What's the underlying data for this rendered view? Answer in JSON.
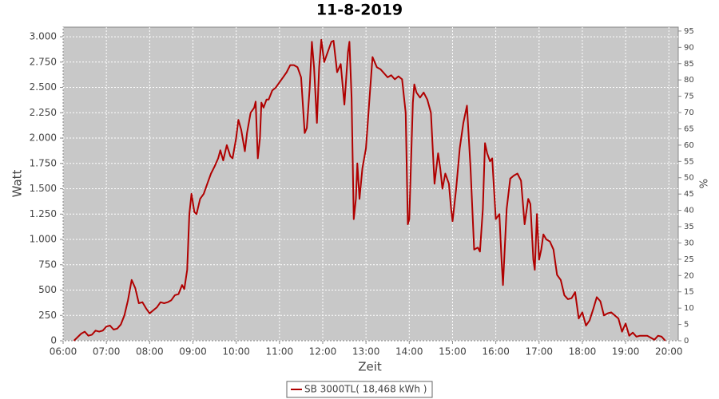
{
  "chart_data": {
    "type": "line",
    "title": "11-8-2019",
    "x_label": "Zeit",
    "y_label": "Watt",
    "y2_label": "%",
    "x": [
      "06:15",
      "06:25",
      "06:30",
      "06:35",
      "06:40",
      "06:45",
      "06:50",
      "06:55",
      "07:00",
      "07:05",
      "07:10",
      "07:15",
      "07:20",
      "07:25",
      "07:30",
      "07:35",
      "07:40",
      "07:45",
      "07:50",
      "07:55",
      "08:00",
      "08:05",
      "08:10",
      "08:15",
      "08:20",
      "08:25",
      "08:30",
      "08:35",
      "08:40",
      "08:45",
      "08:48",
      "08:52",
      "08:55",
      "08:58",
      "09:02",
      "09:05",
      "09:10",
      "09:15",
      "09:20",
      "09:25",
      "09:30",
      "09:35",
      "09:38",
      "09:42",
      "09:47",
      "09:52",
      "09:55",
      "10:00",
      "10:03",
      "10:07",
      "10:12",
      "10:15",
      "10:20",
      "10:25",
      "10:27",
      "10:30",
      "10:33",
      "10:35",
      "10:38",
      "10:42",
      "10:45",
      "10:50",
      "10:55",
      "11:00",
      "11:05",
      "11:10",
      "11:15",
      "11:20",
      "11:25",
      "11:30",
      "11:35",
      "11:38",
      "11:42",
      "11:45",
      "11:48",
      "11:52",
      "11:55",
      "11:58",
      "12:02",
      "12:07",
      "12:12",
      "12:15",
      "12:20",
      "12:25",
      "12:30",
      "12:35",
      "12:37",
      "12:40",
      "12:43",
      "12:46",
      "12:48",
      "12:51",
      "12:55",
      "13:00",
      "13:05",
      "13:09",
      "13:15",
      "13:20",
      "13:30",
      "13:35",
      "13:40",
      "13:45",
      "13:50",
      "13:55",
      "13:58",
      "14:00",
      "14:05",
      "14:07",
      "14:10",
      "14:15",
      "14:20",
      "14:25",
      "14:30",
      "14:35",
      "14:40",
      "14:43",
      "14:46",
      "14:50",
      "14:55",
      "14:58",
      "15:00",
      "15:05",
      "15:10",
      "15:15",
      "15:20",
      "15:25",
      "15:30",
      "15:35",
      "15:38",
      "15:42",
      "15:45",
      "15:48",
      "15:52",
      "15:55",
      "16:00",
      "16:05",
      "16:08",
      "16:10",
      "16:15",
      "16:20",
      "16:25",
      "16:30",
      "16:35",
      "16:40",
      "16:45",
      "16:48",
      "16:52",
      "16:54",
      "16:57",
      "17:00",
      "17:03",
      "17:06",
      "17:10",
      "17:15",
      "17:20",
      "17:25",
      "17:30",
      "17:35",
      "17:40",
      "17:45",
      "17:50",
      "17:55",
      "18:00",
      "18:05",
      "18:10",
      "18:15",
      "18:20",
      "18:25",
      "18:30",
      "18:35",
      "18:40",
      "18:45",
      "18:50",
      "18:55",
      "19:00",
      "19:05",
      "19:10",
      "19:15",
      "19:20",
      "19:30",
      "19:35",
      "19:40",
      "19:45",
      "19:50",
      "19:55"
    ],
    "series": [
      {
        "name": "SB 3000TL( 18,468 kWh )",
        "color": "#b00000",
        "values": [
          0,
          70,
          90,
          50,
          60,
          100,
          90,
          100,
          140,
          150,
          110,
          120,
          160,
          250,
          400,
          600,
          520,
          370,
          380,
          320,
          270,
          300,
          330,
          380,
          370,
          380,
          400,
          450,
          460,
          550,
          510,
          700,
          1250,
          1450,
          1270,
          1250,
          1400,
          1450,
          1550,
          1650,
          1720,
          1800,
          1880,
          1780,
          1930,
          1820,
          1800,
          2000,
          2180,
          2080,
          1870,
          2050,
          2250,
          2300,
          2360,
          1800,
          2000,
          2350,
          2300,
          2380,
          2380,
          2470,
          2500,
          2550,
          2600,
          2650,
          2720,
          2720,
          2700,
          2600,
          2050,
          2100,
          2500,
          2950,
          2700,
          2150,
          2700,
          2970,
          2750,
          2850,
          2950,
          2960,
          2650,
          2730,
          2330,
          2850,
          2950,
          2400,
          1200,
          1400,
          1750,
          1400,
          1700,
          1900,
          2400,
          2800,
          2700,
          2680,
          2600,
          2620,
          2580,
          2610,
          2580,
          2250,
          1150,
          1200,
          2350,
          2530,
          2450,
          2400,
          2450,
          2380,
          2250,
          1550,
          1850,
          1700,
          1500,
          1650,
          1550,
          1300,
          1180,
          1500,
          1900,
          2150,
          2320,
          1700,
          900,
          920,
          880,
          1300,
          1950,
          1850,
          1770,
          1800,
          1200,
          1250,
          800,
          550,
          1300,
          1600,
          1630,
          1650,
          1580,
          1150,
          1400,
          1350,
          800,
          700,
          1250,
          800,
          900,
          1050,
          1000,
          980,
          900,
          650,
          600,
          450,
          410,
          420,
          480,
          220,
          280,
          150,
          200,
          310,
          430,
          390,
          250,
          270,
          280,
          250,
          220,
          90,
          170,
          50,
          80,
          40,
          50,
          50,
          30,
          10,
          50,
          40,
          0
        ]
      }
    ],
    "xlim": [
      "06:00",
      "20:13"
    ],
    "xticks": [
      "06:00",
      "07:00",
      "08:00",
      "09:00",
      "10:00",
      "11:00",
      "12:00",
      "13:00",
      "14:00",
      "15:00",
      "16:00",
      "17:00",
      "18:00",
      "19:00",
      "20:00"
    ],
    "ylim": [
      0,
      3095
    ],
    "yticks": [
      0,
      250,
      500,
      750,
      {
        "value": 1000,
        "label": "1.000"
      },
      {
        "value": 1250,
        "label": "1.250"
      },
      {
        "value": 1500,
        "label": "1.500"
      },
      {
        "value": 1750,
        "label": "1.750"
      },
      {
        "value": 2000,
        "label": "2.000"
      },
      {
        "value": 2250,
        "label": "2.250"
      },
      {
        "value": 2500,
        "label": "2.500"
      },
      {
        "value": 2750,
        "label": "2.750"
      },
      {
        "value": 3000,
        "label": "3.000"
      }
    ],
    "y2lim": [
      0,
      96.2
    ],
    "y2ticks": [
      0,
      5,
      10,
      15,
      20,
      25,
      30,
      35,
      40,
      45,
      50,
      55,
      60,
      65,
      70,
      75,
      80,
      85,
      90,
      95
    ],
    "grid": true
  }
}
